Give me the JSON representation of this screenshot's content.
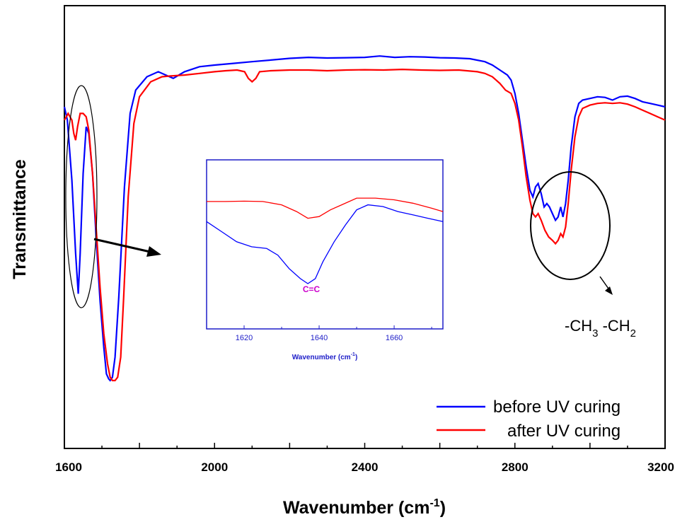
{
  "colors": {
    "before": "#0000ff",
    "after": "#ff0000",
    "inset_axis": "#1d1dc8",
    "bond_label": "#cc00cc"
  },
  "chart_data": [
    {
      "type": "line",
      "title": "",
      "xlabel_main": "Wavenumber (cm",
      "xlabel_sup": "-1",
      "xlabel_tail": ")",
      "ylabel": "Transmittance",
      "xlim": [
        1600,
        3200
      ],
      "ylim": [
        0,
        1
      ],
      "y_ticks_shown": false,
      "grid": false,
      "legend_position": "bottom-right",
      "x_tick_labels": [
        "1600",
        "2000",
        "2400",
        "2800",
        "3200"
      ],
      "x_tick_values": [
        1600,
        2000,
        2400,
        2800,
        3200
      ],
      "series": [
        {
          "name": "before UV curing",
          "color": "#0000ff",
          "points": [
            [
              1600,
              0.82
            ],
            [
              1608,
              0.78
            ],
            [
              1620,
              0.6
            ],
            [
              1630,
              0.38
            ],
            [
              1637,
              0.26
            ],
            [
              1642,
              0.38
            ],
            [
              1650,
              0.62
            ],
            [
              1658,
              0.76
            ],
            [
              1665,
              0.74
            ],
            [
              1675,
              0.62
            ],
            [
              1685,
              0.42
            ],
            [
              1695,
              0.24
            ],
            [
              1705,
              0.1
            ],
            [
              1712,
              0.02
            ],
            [
              1718,
              0.005
            ],
            [
              1722,
              0.0
            ],
            [
              1728,
              0.01
            ],
            [
              1735,
              0.07
            ],
            [
              1745,
              0.25
            ],
            [
              1760,
              0.58
            ],
            [
              1775,
              0.8
            ],
            [
              1790,
              0.87
            ],
            [
              1820,
              0.91
            ],
            [
              1850,
              0.925
            ],
            [
              1870,
              0.915
            ],
            [
              1890,
              0.905
            ],
            [
              1920,
              0.925
            ],
            [
              1960,
              0.94
            ],
            [
              2000,
              0.945
            ],
            [
              2050,
              0.95
            ],
            [
              2100,
              0.955
            ],
            [
              2150,
              0.96
            ],
            [
              2200,
              0.965
            ],
            [
              2250,
              0.968
            ],
            [
              2300,
              0.966
            ],
            [
              2350,
              0.967
            ],
            [
              2400,
              0.968
            ],
            [
              2440,
              0.972
            ],
            [
              2480,
              0.968
            ],
            [
              2520,
              0.97
            ],
            [
              2560,
              0.969
            ],
            [
              2600,
              0.967
            ],
            [
              2640,
              0.966
            ],
            [
              2680,
              0.964
            ],
            [
              2720,
              0.955
            ],
            [
              2740,
              0.945
            ],
            [
              2760,
              0.93
            ],
            [
              2780,
              0.915
            ],
            [
              2790,
              0.9
            ],
            [
              2800,
              0.86
            ],
            [
              2810,
              0.8
            ],
            [
              2820,
              0.72
            ],
            [
              2830,
              0.64
            ],
            [
              2840,
              0.57
            ],
            [
              2848,
              0.55
            ],
            [
              2855,
              0.58
            ],
            [
              2862,
              0.59
            ],
            [
              2870,
              0.56
            ],
            [
              2878,
              0.52
            ],
            [
              2885,
              0.53
            ],
            [
              2892,
              0.52
            ],
            [
              2900,
              0.5
            ],
            [
              2908,
              0.48
            ],
            [
              2915,
              0.49
            ],
            [
              2922,
              0.52
            ],
            [
              2928,
              0.49
            ],
            [
              2935,
              0.53
            ],
            [
              2942,
              0.6
            ],
            [
              2950,
              0.7
            ],
            [
              2960,
              0.79
            ],
            [
              2970,
              0.83
            ],
            [
              2980,
              0.84
            ],
            [
              3000,
              0.845
            ],
            [
              3020,
              0.85
            ],
            [
              3040,
              0.848
            ],
            [
              3060,
              0.84
            ],
            [
              3080,
              0.85
            ],
            [
              3100,
              0.852
            ],
            [
              3120,
              0.845
            ],
            [
              3140,
              0.835
            ],
            [
              3160,
              0.83
            ],
            [
              3180,
              0.825
            ],
            [
              3200,
              0.82
            ]
          ]
        },
        {
          "name": "after UV curing",
          "color": "#ff0000",
          "points": [
            [
              1600,
              0.78
            ],
            [
              1610,
              0.8
            ],
            [
              1620,
              0.78
            ],
            [
              1625,
              0.74
            ],
            [
              1630,
              0.72
            ],
            [
              1635,
              0.76
            ],
            [
              1642,
              0.8
            ],
            [
              1650,
              0.8
            ],
            [
              1658,
              0.79
            ],
            [
              1665,
              0.75
            ],
            [
              1675,
              0.62
            ],
            [
              1685,
              0.45
            ],
            [
              1695,
              0.28
            ],
            [
              1705,
              0.14
            ],
            [
              1715,
              0.05
            ],
            [
              1722,
              0.01
            ],
            [
              1728,
              0.0
            ],
            [
              1735,
              0.0
            ],
            [
              1742,
              0.01
            ],
            [
              1750,
              0.07
            ],
            [
              1758,
              0.25
            ],
            [
              1770,
              0.55
            ],
            [
              1785,
              0.77
            ],
            [
              1800,
              0.85
            ],
            [
              1830,
              0.895
            ],
            [
              1860,
              0.91
            ],
            [
              1880,
              0.912
            ],
            [
              1920,
              0.915
            ],
            [
              1960,
              0.92
            ],
            [
              2000,
              0.925
            ],
            [
              2030,
              0.928
            ],
            [
              2060,
              0.93
            ],
            [
              2080,
              0.925
            ],
            [
              2090,
              0.905
            ],
            [
              2100,
              0.895
            ],
            [
              2110,
              0.905
            ],
            [
              2120,
              0.925
            ],
            [
              2150,
              0.928
            ],
            [
              2200,
              0.93
            ],
            [
              2250,
              0.93
            ],
            [
              2300,
              0.928
            ],
            [
              2350,
              0.93
            ],
            [
              2400,
              0.931
            ],
            [
              2450,
              0.93
            ],
            [
              2500,
              0.932
            ],
            [
              2550,
              0.93
            ],
            [
              2600,
              0.929
            ],
            [
              2650,
              0.93
            ],
            [
              2700,
              0.925
            ],
            [
              2720,
              0.92
            ],
            [
              2740,
              0.91
            ],
            [
              2760,
              0.89
            ],
            [
              2775,
              0.87
            ],
            [
              2790,
              0.86
            ],
            [
              2800,
              0.83
            ],
            [
              2810,
              0.78
            ],
            [
              2820,
              0.7
            ],
            [
              2830,
              0.61
            ],
            [
              2840,
              0.54
            ],
            [
              2848,
              0.5
            ],
            [
              2855,
              0.49
            ],
            [
              2862,
              0.5
            ],
            [
              2870,
              0.48
            ],
            [
              2880,
              0.45
            ],
            [
              2890,
              0.43
            ],
            [
              2900,
              0.42
            ],
            [
              2908,
              0.41
            ],
            [
              2915,
              0.42
            ],
            [
              2922,
              0.44
            ],
            [
              2928,
              0.43
            ],
            [
              2935,
              0.46
            ],
            [
              2942,
              0.53
            ],
            [
              2950,
              0.63
            ],
            [
              2960,
              0.73
            ],
            [
              2970,
              0.79
            ],
            [
              2980,
              0.815
            ],
            [
              3000,
              0.825
            ],
            [
              3020,
              0.83
            ],
            [
              3040,
              0.832
            ],
            [
              3060,
              0.83
            ],
            [
              3080,
              0.832
            ],
            [
              3100,
              0.828
            ],
            [
              3120,
              0.82
            ],
            [
              3140,
              0.81
            ],
            [
              3160,
              0.8
            ],
            [
              3180,
              0.79
            ],
            [
              3200,
              0.78
            ]
          ]
        }
      ]
    },
    {
      "type": "line",
      "title": "",
      "xlabel_main": "Wavenumber (cm",
      "xlabel_sup": "-1",
      "xlabel_tail": ")",
      "ylabel": "",
      "xlim": [
        1610,
        1673
      ],
      "ylim": [
        0,
        1
      ],
      "y_ticks_shown": false,
      "grid": false,
      "x_tick_labels": [
        "1620",
        "1640",
        "1660"
      ],
      "x_tick_values": [
        1620,
        1640,
        1660
      ],
      "annotation": "C=C",
      "series": [
        {
          "name": "before UV curing",
          "color": "#0000ff",
          "points": [
            [
              1610,
              0.64
            ],
            [
              1614,
              0.58
            ],
            [
              1618,
              0.52
            ],
            [
              1622,
              0.49
            ],
            [
              1626,
              0.48
            ],
            [
              1629,
              0.44
            ],
            [
              1632,
              0.36
            ],
            [
              1635,
              0.3
            ],
            [
              1637,
              0.27
            ],
            [
              1639,
              0.3
            ],
            [
              1641,
              0.4
            ],
            [
              1644,
              0.52
            ],
            [
              1647,
              0.62
            ],
            [
              1650,
              0.71
            ],
            [
              1653,
              0.74
            ],
            [
              1657,
              0.73
            ],
            [
              1661,
              0.7
            ],
            [
              1665,
              0.68
            ],
            [
              1669,
              0.66
            ],
            [
              1673,
              0.64
            ]
          ]
        },
        {
          "name": "after UV curing",
          "color": "#ff0000",
          "points": [
            [
              1610,
              0.76
            ],
            [
              1615,
              0.76
            ],
            [
              1620,
              0.762
            ],
            [
              1625,
              0.76
            ],
            [
              1630,
              0.74
            ],
            [
              1634,
              0.7
            ],
            [
              1637,
              0.66
            ],
            [
              1640,
              0.67
            ],
            [
              1643,
              0.71
            ],
            [
              1646,
              0.74
            ],
            [
              1650,
              0.78
            ],
            [
              1655,
              0.78
            ],
            [
              1660,
              0.77
            ],
            [
              1665,
              0.75
            ],
            [
              1670,
              0.72
            ],
            [
              1673,
              0.7
            ]
          ]
        }
      ]
    }
  ],
  "legend": [
    {
      "label": "before UV curing",
      "color": "#0000ff"
    },
    {
      "label": "after UV curing",
      "color": "#ff0000"
    }
  ],
  "annotations": {
    "ch_group_main1": "-CH",
    "ch_group_sub1": "3",
    "ch_group_main2": " -CH",
    "ch_group_sub2": "2"
  }
}
